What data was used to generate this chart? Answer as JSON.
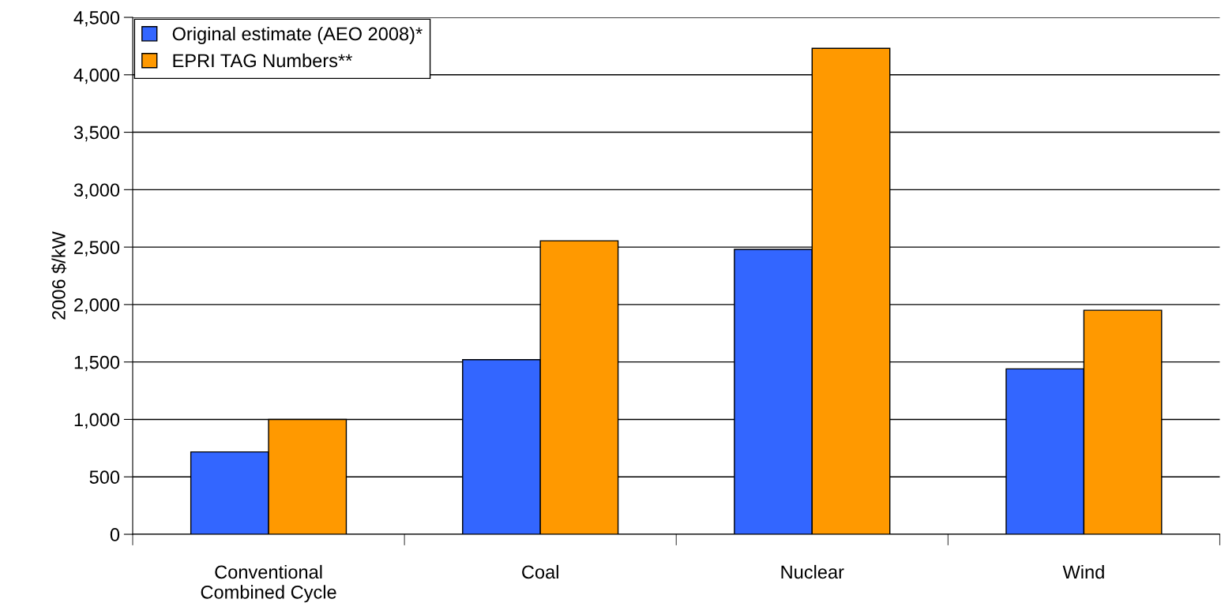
{
  "chart_data": {
    "type": "bar",
    "ylabel": "2006 $/kW",
    "categories": [
      "Conventional\nCombined Cycle",
      "Coal",
      "Nuclear",
      "Wind"
    ],
    "series": [
      {
        "name": "Original estimate (AEO 2008)*",
        "color": "#3366ff",
        "values": [
          717,
          1520,
          2480,
          1440
        ]
      },
      {
        "name": "EPRI TAG Numbers**",
        "color": "#ff9900",
        "values": [
          1000,
          2555,
          4230,
          1950
        ]
      }
    ],
    "ylim": [
      0,
      4500
    ],
    "yticks": [
      {
        "value": 0,
        "label": "0"
      },
      {
        "value": 500,
        "label": "500"
      },
      {
        "value": 1000,
        "label": "1,000"
      },
      {
        "value": 1500,
        "label": "1,500"
      },
      {
        "value": 2000,
        "label": "2,000"
      },
      {
        "value": 2500,
        "label": "2,500"
      },
      {
        "value": 3000,
        "label": "3,000"
      },
      {
        "value": 3500,
        "label": "3,500"
      },
      {
        "value": 4000,
        "label": "4,000"
      },
      {
        "value": 4500,
        "label": "4,500"
      }
    ],
    "grid": "y",
    "legend": "top left"
  }
}
